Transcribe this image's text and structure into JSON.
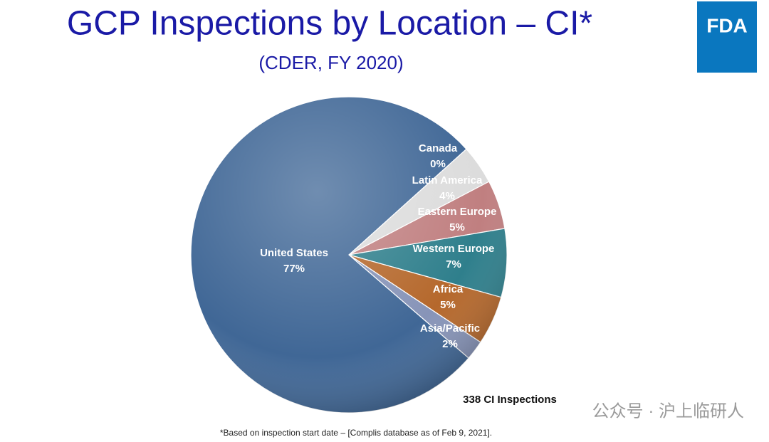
{
  "chart_data": {
    "type": "pie",
    "title": "GCP Inspections by Location – CI*",
    "subtitle": "(CDER, FY 2020)",
    "categories": [
      "Canada",
      "Latin America",
      "Eastern Europe",
      "Western Europe",
      "Africa",
      "Asia/Pacific",
      "United States"
    ],
    "values": [
      0,
      4,
      5,
      7,
      5,
      2,
      77
    ],
    "value_labels": [
      "0%",
      "4%",
      "5%",
      "7%",
      "5%",
      "2%",
      "77%"
    ],
    "colors": [
      "#e3a57f",
      "#dcdcdc",
      "#c07f80",
      "#2f7f8c",
      "#b5682c",
      "#8794b8",
      "#406796"
    ],
    "annotation": "338 CI Inspections",
    "footnote": "*Based on inspection start date – [Complis database as of Feb 9, 2021].",
    "logo": "FDA",
    "watermark": "公众号 · 沪上临研人"
  }
}
